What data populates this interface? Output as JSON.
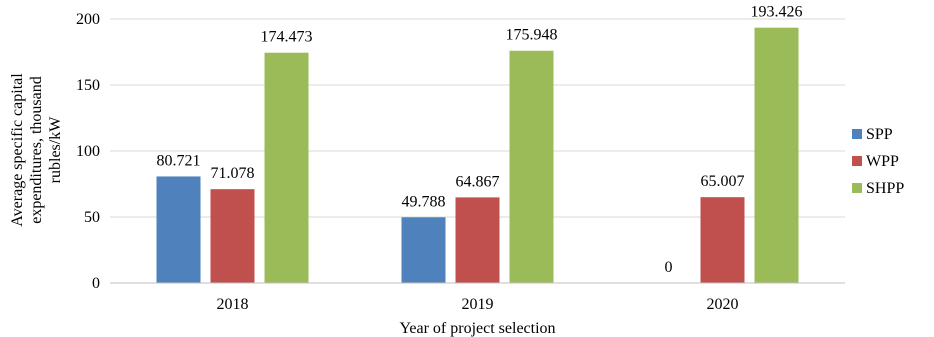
{
  "chart_data": {
    "type": "bar",
    "title": "",
    "xlabel": "Year of project selection",
    "ylabel_lines": [
      "Average specific capital",
      "expenditures, thousand",
      "rubles/kW"
    ],
    "categories": [
      "2018",
      "2019",
      "2020"
    ],
    "ylim": [
      0,
      200
    ],
    "yticks": [
      0,
      50,
      100,
      150,
      200
    ],
    "grid": true,
    "legend_position": "right",
    "series": [
      {
        "name": "SPP",
        "color": "#4f81bd",
        "values": [
          80.721,
          49.788,
          0
        ],
        "labels": [
          "80.721",
          "49.788",
          "0"
        ]
      },
      {
        "name": "WPP",
        "color": "#c0504d",
        "values": [
          71.078,
          64.867,
          65.007
        ],
        "labels": [
          "71.078",
          "64.867",
          "65.007"
        ]
      },
      {
        "name": "SHPP",
        "color": "#9bbb59",
        "values": [
          174.473,
          175.948,
          193.426
        ],
        "labels": [
          "174.473",
          "175.948",
          "193.426"
        ]
      }
    ]
  }
}
